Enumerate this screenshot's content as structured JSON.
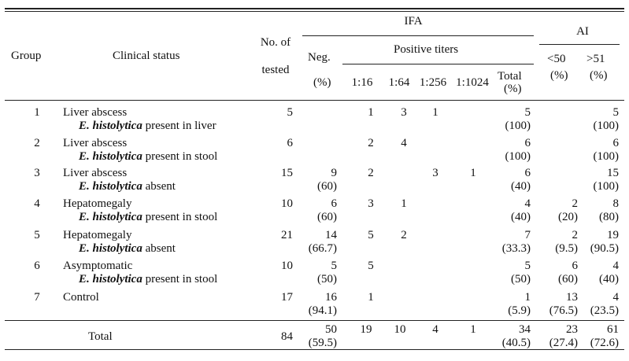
{
  "header": {
    "group": "Group",
    "clinical_status": "Clinical status",
    "no_tested_1": "No. of",
    "no_tested_2": "tested",
    "ifa": "IFA",
    "neg": "Neg.",
    "neg_pct": "(%)",
    "positive_titers": "Positive titers",
    "titers": [
      "1:16",
      "1:64",
      "1:256",
      "1:1024"
    ],
    "total": "Total",
    "total_pct": "(%)",
    "ai": "AI",
    "ai_lt": "<50",
    "ai_lt_pct": "(%)",
    "ai_gt": ">51",
    "ai_gt_pct": "(%)"
  },
  "rows": [
    {
      "group": "1",
      "status": "Liver abscess",
      "organism": "E. histolytica",
      "detail": " present in liver",
      "tested": "5",
      "neg": "",
      "neg_pct": "",
      "t16": "1",
      "t64": "3",
      "t256": "1",
      "t1024": "",
      "total": "5",
      "total_pct": "(100)",
      "ai_lt": "",
      "ai_lt_pct": "",
      "ai_gt": "5",
      "ai_gt_pct": "(100)"
    },
    {
      "group": "2",
      "status": "Liver abscess",
      "organism": "E. histolytica",
      "detail": " present in stool",
      "tested": "6",
      "neg": "",
      "neg_pct": "",
      "t16": "2",
      "t64": "4",
      "t256": "",
      "t1024": "",
      "total": "6",
      "total_pct": "(100)",
      "ai_lt": "",
      "ai_lt_pct": "",
      "ai_gt": "6",
      "ai_gt_pct": "(100)"
    },
    {
      "group": "3",
      "status": "Liver abscess",
      "organism": "E. histolytica",
      "detail": " absent",
      "tested": "15",
      "neg": "9",
      "neg_pct": "(60)",
      "t16": "2",
      "t64": "",
      "t256": "3",
      "t1024": "1",
      "total": "6",
      "total_pct": "(40)",
      "ai_lt": "",
      "ai_lt_pct": "",
      "ai_gt": "15",
      "ai_gt_pct": "(100)"
    },
    {
      "group": "4",
      "status": "Hepatomegaly",
      "organism": "E. histolytica",
      "detail": " present in stool",
      "tested": "10",
      "neg": "6",
      "neg_pct": "(60)",
      "t16": "3",
      "t64": "1",
      "t256": "",
      "t1024": "",
      "total": "4",
      "total_pct": "(40)",
      "ai_lt": "2",
      "ai_lt_pct": "(20)",
      "ai_gt": "8",
      "ai_gt_pct": "(80)"
    },
    {
      "group": "5",
      "status": "Hepatomegaly",
      "organism": "E. histolytica",
      "detail": " absent",
      "tested": "21",
      "neg": "14",
      "neg_pct": "(66.7)",
      "t16": "5",
      "t64": "2",
      "t256": "",
      "t1024": "",
      "total": "7",
      "total_pct": "(33.3)",
      "ai_lt": "2",
      "ai_lt_pct": "(9.5)",
      "ai_gt": "19",
      "ai_gt_pct": "(90.5)"
    },
    {
      "group": "6",
      "status": "Asymptomatic",
      "organism": "E. histolytica",
      "detail": " present in stool",
      "tested": "10",
      "neg": "5",
      "neg_pct": "(50)",
      "t16": "5",
      "t64": "",
      "t256": "",
      "t1024": "",
      "total": "5",
      "total_pct": "(50)",
      "ai_lt": "6",
      "ai_lt_pct": "(60)",
      "ai_gt": "4",
      "ai_gt_pct": "(40)"
    },
    {
      "group": "7",
      "status": "Control",
      "organism": "",
      "detail": "",
      "tested": "17",
      "neg": "16",
      "neg_pct": "(94.1)",
      "t16": "1",
      "t64": "",
      "t256": "",
      "t1024": "",
      "total": "1",
      "total_pct": "(5.9)",
      "ai_lt": "13",
      "ai_lt_pct": "(76.5)",
      "ai_gt": "4",
      "ai_gt_pct": "(23.5)"
    }
  ],
  "total_row": {
    "label": "Total",
    "tested": "84",
    "neg": "50",
    "neg_pct": "(59.5)",
    "t16": "19",
    "t64": "10",
    "t256": "4",
    "t1024": "1",
    "total": "34",
    "total_pct": "(40.5)",
    "ai_lt": "23",
    "ai_lt_pct": "(27.4)",
    "ai_gt": "61",
    "ai_gt_pct": "(72.6)"
  }
}
